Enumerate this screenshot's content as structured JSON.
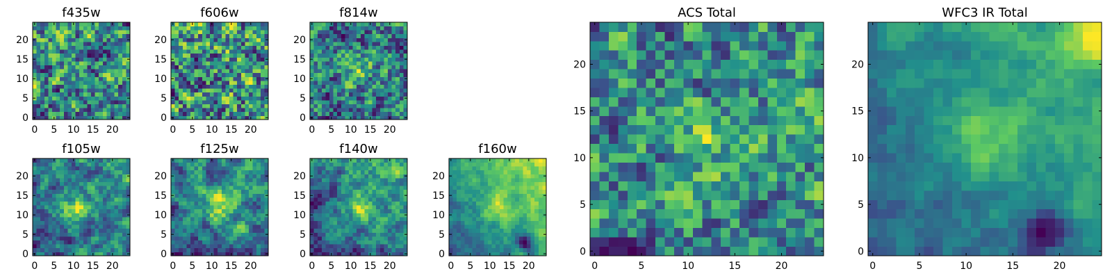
{
  "figure": {
    "colormap": "viridis",
    "colormap_stops": [
      "#440154",
      "#3b528b",
      "#21908c",
      "#5dc963",
      "#fde725"
    ]
  },
  "chart_data": [
    {
      "type": "heatmap",
      "title": "f435w",
      "grid_size": [
        25,
        25
      ],
      "xlim": [
        0,
        24
      ],
      "ylim": [
        0,
        24
      ],
      "xticks": [
        0,
        5,
        10,
        15,
        20
      ],
      "yticks": [
        0,
        5,
        10,
        15,
        20
      ],
      "origin": "lower",
      "colormap": "viridis",
      "smoothness": 0.15,
      "gradient": 0.0,
      "features": [],
      "seed": 11
    },
    {
      "type": "heatmap",
      "title": "f606w",
      "grid_size": [
        25,
        25
      ],
      "xlim": [
        0,
        24
      ],
      "ylim": [
        0,
        24
      ],
      "xticks": [
        0,
        5,
        10,
        15,
        20
      ],
      "yticks": [
        0,
        5,
        10,
        15,
        20
      ],
      "origin": "lower",
      "colormap": "viridis",
      "smoothness": 0.2,
      "gradient": 0.05,
      "features": [],
      "seed": 23
    },
    {
      "type": "heatmap",
      "title": "f814w",
      "grid_size": [
        25,
        25
      ],
      "xlim": [
        0,
        24
      ],
      "ylim": [
        0,
        24
      ],
      "xticks": [
        0,
        5,
        10,
        15,
        20
      ],
      "yticks": [
        0,
        5,
        10,
        15,
        20
      ],
      "origin": "lower",
      "colormap": "viridis",
      "smoothness": 0.25,
      "gradient": 0.05,
      "features": [
        {
          "x": 12,
          "y": 12,
          "strength": 0.35,
          "radius": 3
        }
      ],
      "seed": 37
    },
    {
      "type": "heatmap",
      "title": "f105w",
      "grid_size": [
        25,
        25
      ],
      "xlim": [
        0,
        24
      ],
      "ylim": [
        0,
        24
      ],
      "xticks": [
        0,
        5,
        10,
        15,
        20
      ],
      "yticks": [
        0,
        5,
        10,
        15,
        20
      ],
      "origin": "lower",
      "colormap": "viridis",
      "smoothness": 0.45,
      "gradient": 0.15,
      "features": [
        {
          "x": 11,
          "y": 12,
          "strength": 0.5,
          "radius": 3
        }
      ],
      "seed": 41
    },
    {
      "type": "heatmap",
      "title": "f125w",
      "grid_size": [
        25,
        25
      ],
      "xlim": [
        0,
        24
      ],
      "ylim": [
        0,
        24
      ],
      "xticks": [
        0,
        5,
        10,
        15,
        20
      ],
      "yticks": [
        0,
        5,
        10,
        15,
        20
      ],
      "origin": "lower",
      "colormap": "viridis",
      "smoothness": 0.5,
      "gradient": 0.35,
      "features": [
        {
          "x": 12,
          "y": 12,
          "strength": 0.35,
          "radius": 3
        }
      ],
      "seed": 53
    },
    {
      "type": "heatmap",
      "title": "f140w",
      "grid_size": [
        25,
        25
      ],
      "xlim": [
        0,
        24
      ],
      "ylim": [
        0,
        24
      ],
      "xticks": [
        0,
        5,
        10,
        15,
        20
      ],
      "yticks": [
        0,
        5,
        10,
        15,
        20
      ],
      "origin": "lower",
      "colormap": "viridis",
      "smoothness": 0.5,
      "gradient": 0.4,
      "features": [
        {
          "x": 12,
          "y": 12,
          "strength": 0.3,
          "radius": 3
        }
      ],
      "seed": 67
    },
    {
      "type": "heatmap",
      "title": "f160w",
      "grid_size": [
        25,
        25
      ],
      "xlim": [
        0,
        24
      ],
      "ylim": [
        0,
        24
      ],
      "xticks": [
        0,
        5,
        10,
        15,
        20
      ],
      "yticks": [
        0,
        5,
        10,
        15,
        20
      ],
      "origin": "lower",
      "colormap": "viridis",
      "smoothness": 0.55,
      "gradient": 0.6,
      "features": [
        {
          "x": 12,
          "y": 12,
          "strength": 0.3,
          "radius": 3
        },
        {
          "x": 19,
          "y": 3,
          "strength": -0.6,
          "radius": 1.5
        }
      ],
      "seed": 79
    },
    {
      "type": "heatmap",
      "title": "ACS Total",
      "grid_size": [
        25,
        25
      ],
      "xlim": [
        0,
        24
      ],
      "ylim": [
        0,
        24
      ],
      "xticks": [
        0,
        5,
        10,
        15,
        20
      ],
      "yticks": [
        0,
        5,
        10,
        15,
        20
      ],
      "origin": "lower",
      "colormap": "viridis",
      "smoothness": 0.2,
      "gradient": 0.05,
      "features": [
        {
          "x": 12,
          "y": 12,
          "strength": 0.3,
          "radius": 2
        }
      ],
      "seed": 97
    },
    {
      "type": "heatmap",
      "title": "WFC3 IR Total",
      "grid_size": [
        25,
        25
      ],
      "xlim": [
        0,
        24
      ],
      "ylim": [
        0,
        24
      ],
      "xticks": [
        0,
        5,
        10,
        15,
        20
      ],
      "yticks": [
        0,
        5,
        10,
        15,
        20
      ],
      "origin": "lower",
      "colormap": "viridis",
      "smoothness": 0.6,
      "gradient": 0.55,
      "features": [
        {
          "x": 12,
          "y": 12,
          "strength": 0.4,
          "radius": 3
        },
        {
          "x": 18,
          "y": 2,
          "strength": -0.8,
          "radius": 1.5
        },
        {
          "x": 23,
          "y": 23,
          "strength": 0.35,
          "radius": 3
        }
      ],
      "seed": 113
    }
  ]
}
